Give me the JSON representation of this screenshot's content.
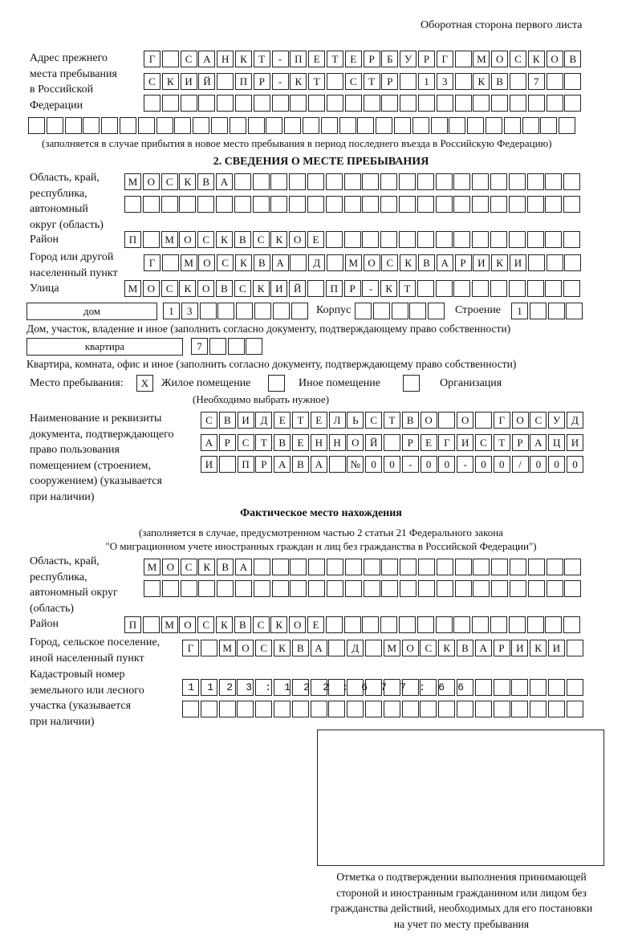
{
  "header": {
    "title": "Оборотная сторона первого листа"
  },
  "previous_address": {
    "label": "Адрес прежнего\nместа пребывания\nв Российской\nФедерации",
    "rows": [
      "Г САНКТ-ПЕТЕРБУРГ МОСКОВ",
      "СКИЙ ПР-КТ СТР 13 КВ 7",
      "",
      ""
    ],
    "note": "(заполняется в случае прибытия в новое место пребывания в период последнего въезда в Российскую Федерацию)"
  },
  "section2": {
    "title": "2. СВЕДЕНИЯ О МЕСТЕ ПРЕБЫВАНИЯ",
    "region_label": "Область, край,\nреспублика,\nавтономный\nокруг (область)",
    "region_rows": [
      "МОСКВА",
      ""
    ],
    "district_label": "Район",
    "district": "П МОСКВСКОЕ",
    "city_label": "Город или другой\nнаселенный пункт",
    "city": "Г МОСКВА Д МОСКВАРИКИ",
    "street_label": "Улица",
    "street": "МОСКОВСКИЙ ПР-КТ",
    "house_type": "дом",
    "house_number": "13",
    "korpus_label": "Корпус",
    "korpus": "",
    "building_label": "Строение",
    "building": "1",
    "house_note": "Дом, участок, владение и иное (заполнить согласно документу, подтверждающему право собственности)",
    "apartment_type": "квартира",
    "apartment_number": "7",
    "apartment_note": "Квартира, комната, офис и иное (заполнить согласно документу, подтверждающему право собственности)",
    "stay_place_label": "Место пребывания:",
    "options": [
      {
        "label": "Жилое помещение",
        "mark": "Х",
        "checked": true
      },
      {
        "label": "Иное помещение",
        "mark": "",
        "checked": false
      },
      {
        "label": "Организация",
        "mark": "",
        "checked": false
      }
    ],
    "options_note": "(Необходимо выбрать нужное)",
    "document_label": "Наименование и реквизиты\nдокумента, подтверждающего\nправо пользования\nпомещением (строением,\nсооружением) (указывается\nпри наличии)",
    "document_rows": [
      "СВИДЕТЕЛЬСТВО О ГОСУД",
      "АРСТВЕННОЙ РЕГИСТРАЦИ",
      "И ПРАВА №00-00-00/000"
    ]
  },
  "actual_location": {
    "title": "Фактическое место нахождения",
    "note_line1": "(заполняется в случае, предусмотренном частью 2 статьи 21 Федерального закона",
    "note_line2": "\"О миграционном учете иностранных граждан и лиц без гражданства в Российской Федерации\")",
    "region_label": "Область, край,\nреспублика,\nавтономный округ\n(область)",
    "region_rows": [
      "МОСКВА",
      ""
    ],
    "district_label": "Район",
    "district": "П МОСКВСКОЕ",
    "city_label": "Город, сельское поселение,\nиной населенный пункт",
    "city": "Г МОСКВА Д МОСКВАРИКИ",
    "cadastral_label": "Кадастровый номер\nземельного или лесного\nучастка (указывается\nпри наличии)",
    "cadastral_rows": [
      "1123:122:677:66",
      ""
    ]
  },
  "confirmation": {
    "caption": "Отметка о подтверждении выполнения принимающей\nстороной и иностранным гражданином или лицом без\nгражданства действий, необходимых для его постановки\nна учет по месту пребывания"
  }
}
